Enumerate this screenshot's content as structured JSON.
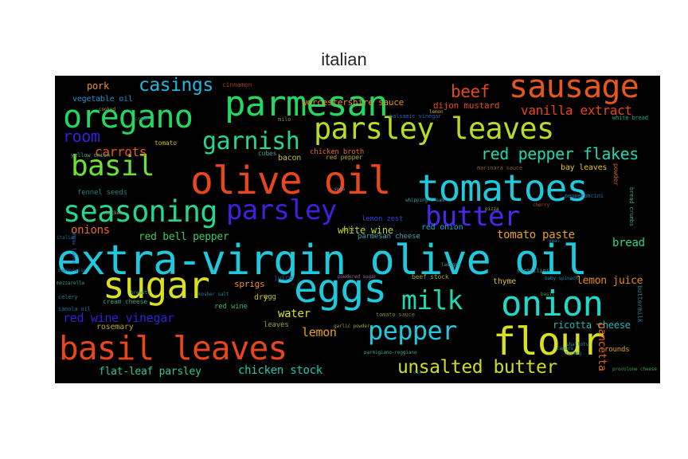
{
  "title": "italian",
  "words": [
    {
      "text": "extra-virgin olive oil",
      "color": "#20c8dc"
    },
    {
      "text": "olive oil",
      "color": "#e8461c"
    },
    {
      "text": "tomatoes",
      "color": "#20c8dc"
    },
    {
      "text": "basil leaves",
      "color": "#e8461c"
    },
    {
      "text": "parmesan",
      "color": "#22d860"
    },
    {
      "text": "parsley leaves",
      "color": "#b8dc20"
    },
    {
      "text": "sausage",
      "color": "#e8561c"
    },
    {
      "text": "oregano",
      "color": "#22d860"
    },
    {
      "text": "eggs",
      "color": "#20c8dc"
    },
    {
      "text": "sugar",
      "color": "#d8e020"
    },
    {
      "text": "onion",
      "color": "#20d8c8"
    },
    {
      "text": "flour",
      "color": "#d8e020"
    },
    {
      "text": "basil",
      "color": "#70e030"
    },
    {
      "text": "seasoning",
      "color": "#22d890"
    },
    {
      "text": "parsley",
      "color": "#4020e0"
    },
    {
      "text": "butter",
      "color": "#4a28e8"
    },
    {
      "text": "milk",
      "color": "#20d8b0"
    },
    {
      "text": "pepper",
      "color": "#20c8dc"
    },
    {
      "text": "garnish",
      "color": "#22d890"
    },
    {
      "text": "casings",
      "color": "#20b8e0"
    },
    {
      "text": "beef",
      "color": "#e8461c"
    },
    {
      "text": "unsalted butter",
      "color": "#d0dc20"
    },
    {
      "text": "red pepper flakes",
      "color": "#20d8b0"
    },
    {
      "text": "room",
      "color": "#3820d8"
    },
    {
      "text": "carrots",
      "color": "#e8561c"
    },
    {
      "text": "vanilla extract",
      "color": "#e8461c"
    },
    {
      "text": "tomato paste",
      "color": "#e8a020"
    },
    {
      "text": "red wine vinegar",
      "color": "#3020d8"
    },
    {
      "text": "lemon juice",
      "color": "#e88820"
    },
    {
      "text": "chicken stock",
      "color": "#20c8b0"
    },
    {
      "text": "flat-leaf parsley",
      "color": "#30c890"
    },
    {
      "text": "lemon",
      "color": "#e8a020"
    },
    {
      "text": "water",
      "color": "#d8e020"
    },
    {
      "text": "bread",
      "color": "#22d890"
    },
    {
      "text": "onions",
      "color": "#e86820"
    },
    {
      "text": "red bell pepper",
      "color": "#40c860"
    },
    {
      "text": "white wine",
      "color": "#b8dc20"
    },
    {
      "text": "ricotta cheese",
      "color": "#20b8b8"
    },
    {
      "text": "pancetta",
      "color": "#e86820"
    },
    {
      "text": "worcestershire sauce",
      "color": "#e89020"
    },
    {
      "text": "dijon mustard",
      "color": "#e8461c"
    },
    {
      "text": "pork",
      "color": "#e89020"
    },
    {
      "text": "vegetable oil",
      "color": "#2090c8"
    },
    {
      "text": "bay leaves",
      "color": "#e8c020"
    },
    {
      "text": "red onion",
      "color": "#20a8d8"
    },
    {
      "text": "parmesan cheese",
      "color": "#40a0b0"
    },
    {
      "text": "lemon zest",
      "color": "#3040d8"
    },
    {
      "text": "dry",
      "color": "#b8c020"
    },
    {
      "text": "rosemary",
      "color": "#b8a020"
    },
    {
      "text": "sprigs",
      "color": "#e89020"
    },
    {
      "text": "thyme",
      "color": "#d8c020"
    },
    {
      "text": "egg",
      "color": "#b8c020"
    },
    {
      "text": "red wine",
      "color": "#40b060"
    },
    {
      "text": "cream cheese",
      "color": "#40a070"
    },
    {
      "text": "chicken broth",
      "color": "#e86820"
    },
    {
      "text": "tomato",
      "color": "#c8c020"
    },
    {
      "text": "fennel seeds",
      "color": "#208080"
    },
    {
      "text": "bacon",
      "color": "#c8c040"
    },
    {
      "text": "cubes",
      "color": "#40a0a0"
    },
    {
      "text": "red pepper",
      "color": "#b0a030"
    },
    {
      "text": "leaves",
      "color": "#a0a040"
    },
    {
      "text": "yellow onion",
      "color": "#40b080"
    },
    {
      "text": "celery",
      "color": "#2080a0"
    },
    {
      "text": "canola oil",
      "color": "#2070a0"
    },
    {
      "text": "tomato sauce",
      "color": "#808030"
    },
    {
      "text": "marinara sauce",
      "color": "#806020"
    },
    {
      "text": "cinnamon",
      "color": "#a04020"
    },
    {
      "text": "rounds",
      "color": "#e0a020"
    },
    {
      "text": "buttermilk",
      "color": "#208090"
    },
    {
      "text": "powder",
      "color": "#c86020"
    },
    {
      "text": "bread crumbs",
      "color": "#40a070"
    },
    {
      "text": "white bread",
      "color": "#20a890"
    },
    {
      "text": "pepperoncini",
      "color": "#2070b0"
    },
    {
      "text": "juice",
      "color": "#3050a0"
    },
    {
      "text": "beef stock",
      "color": "#a0a030"
    },
    {
      "text": "baby spinach",
      "color": "#2090a0"
    },
    {
      "text": "nutmeg",
      "color": "#2080a0"
    },
    {
      "text": "capers",
      "color": "#20a0a0"
    },
    {
      "text": "mozzarella",
      "color": "#40a080"
    },
    {
      "text": "thyme leaves",
      "color": "#3050c0"
    },
    {
      "text": "garlic powder",
      "color": "#a0a040"
    },
    {
      "text": "parmigiano-reggiano",
      "color": "#40a080"
    },
    {
      "text": "mayonnaise",
      "color": "#2060a0"
    },
    {
      "text": "provolone cheese",
      "color": "#40a040"
    },
    {
      "text": "italian",
      "color": "#207090"
    },
    {
      "text": "shallots",
      "color": "#2090b0"
    },
    {
      "text": "tortellini",
      "color": "#20a0a0"
    },
    {
      "text": "kosher salt",
      "color": "#2080a0"
    },
    {
      "text": "oil",
      "color": "#2080a0"
    },
    {
      "text": "milo",
      "color": "#808060"
    },
    {
      "text": "salt",
      "color": "#a0a040"
    },
    {
      "text": "veal",
      "color": "#2080a0"
    },
    {
      "text": "soda",
      "color": "#8080a0"
    },
    {
      "text": "lemon",
      "color": "#d0a030"
    },
    {
      "text": "cream",
      "color": "#3070a0"
    },
    {
      "text": "balsamic vinegar",
      "color": "#3060b0"
    },
    {
      "text": "whipping cream",
      "color": "#30a0a0"
    },
    {
      "text": "powdered sugar",
      "color": "#a060a0"
    },
    {
      "text": "pizza",
      "color": "#a0a040"
    },
    {
      "text": "chicken",
      "color": "#a0a060"
    },
    {
      "text": "breasts",
      "color": "#40a080"
    },
    {
      "text": "lasagna",
      "color": "#40a0a0"
    },
    {
      "text": "cherry",
      "color": "#c04040"
    },
    {
      "text": "basil",
      "color": "#40a040"
    },
    {
      "text": "cooked",
      "color": "#a0a040"
    }
  ]
}
